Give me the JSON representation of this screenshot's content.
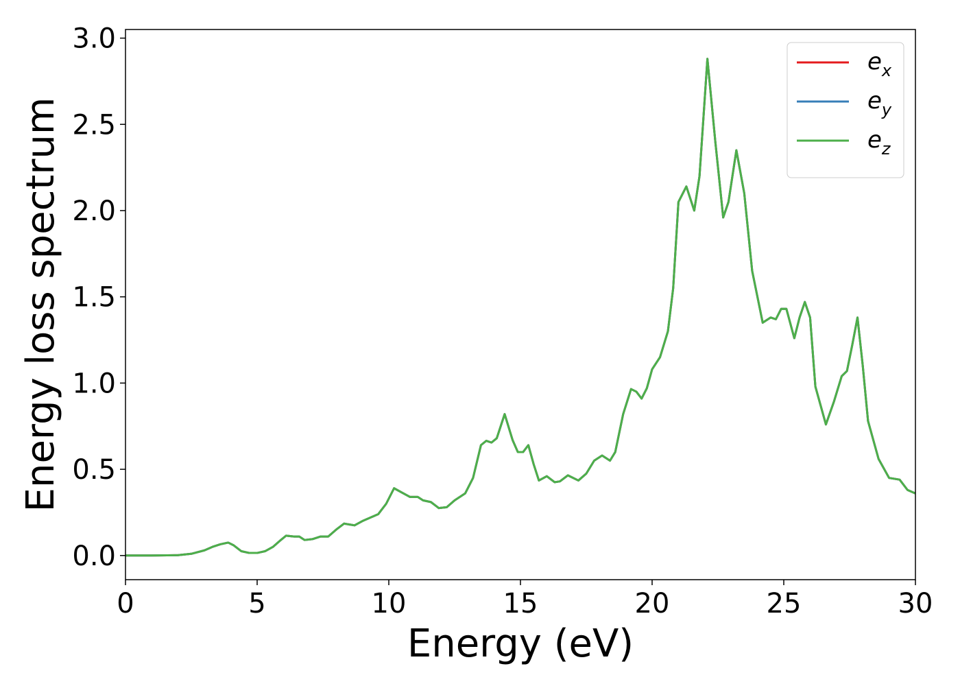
{
  "chart_data": {
    "type": "line",
    "xlabel": "Energy (eV)",
    "ylabel": "Energy loss spectrum",
    "x": [
      0,
      1,
      2,
      2.5,
      3,
      3.3,
      3.6,
      3.9,
      4.1,
      4.4,
      4.7,
      5,
      5.3,
      5.6,
      5.9,
      6.1,
      6.4,
      6.6,
      6.8,
      7.1,
      7.4,
      7.7,
      8,
      8.3,
      8.7,
      9,
      9.3,
      9.6,
      9.9,
      10.2,
      10.5,
      10.8,
      11.1,
      11.3,
      11.6,
      11.9,
      12.2,
      12.5,
      12.9,
      13.2,
      13.5,
      13.7,
      13.9,
      14.1,
      14.4,
      14.7,
      14.9,
      15.1,
      15.3,
      15.5,
      15.7,
      16,
      16.3,
      16.5,
      16.8,
      17.2,
      17.5,
      17.8,
      18.1,
      18.4,
      18.6,
      18.9,
      19.2,
      19.4,
      19.6,
      19.8,
      20,
      20.3,
      20.6,
      20.8,
      21,
      21.3,
      21.6,
      21.8,
      22.1,
      22.4,
      22.7,
      22.9,
      23.2,
      23.5,
      23.8,
      24.2,
      24.5,
      24.7,
      24.9,
      25.1,
      25.4,
      25.6,
      25.8,
      26,
      26.2,
      26.6,
      26.9,
      27.2,
      27.4,
      27.6,
      27.8,
      28,
      28.2,
      28.6,
      29,
      29.4,
      29.7,
      30
    ],
    "series": [
      {
        "name": "e_x",
        "color": "#e41a1c",
        "values": [
          0,
          0,
          0.002,
          0.01,
          0.03,
          0.05,
          0.065,
          0.075,
          0.06,
          0.025,
          0.015,
          0.015,
          0.025,
          0.05,
          0.09,
          0.115,
          0.11,
          0.11,
          0.09,
          0.095,
          0.11,
          0.11,
          0.15,
          0.185,
          0.175,
          0.2,
          0.22,
          0.24,
          0.3,
          0.39,
          0.365,
          0.34,
          0.34,
          0.32,
          0.31,
          0.275,
          0.28,
          0.32,
          0.36,
          0.45,
          0.64,
          0.665,
          0.655,
          0.68,
          0.82,
          0.67,
          0.6,
          0.6,
          0.64,
          0.53,
          0.435,
          0.46,
          0.425,
          0.43,
          0.465,
          0.435,
          0.475,
          0.55,
          0.58,
          0.55,
          0.6,
          0.82,
          0.965,
          0.95,
          0.91,
          0.97,
          1.08,
          1.15,
          1.3,
          1.55,
          2.05,
          2.14,
          2.0,
          2.2,
          2.88,
          2.4,
          1.96,
          2.05,
          2.35,
          2.1,
          1.65,
          1.35,
          1.38,
          1.37,
          1.43,
          1.43,
          1.26,
          1.38,
          1.47,
          1.38,
          0.98,
          0.76,
          0.89,
          1.04,
          1.07,
          1.22,
          1.38,
          1.1,
          0.78,
          0.56,
          0.45,
          0.44,
          0.38,
          0.36
        ]
      },
      {
        "name": "e_y",
        "color": "#377eb8",
        "values": [
          0,
          0,
          0.002,
          0.01,
          0.03,
          0.05,
          0.065,
          0.075,
          0.06,
          0.025,
          0.015,
          0.015,
          0.025,
          0.05,
          0.09,
          0.115,
          0.11,
          0.11,
          0.09,
          0.095,
          0.11,
          0.11,
          0.15,
          0.185,
          0.175,
          0.2,
          0.22,
          0.24,
          0.3,
          0.39,
          0.365,
          0.34,
          0.34,
          0.32,
          0.31,
          0.275,
          0.28,
          0.32,
          0.36,
          0.45,
          0.64,
          0.665,
          0.655,
          0.68,
          0.82,
          0.67,
          0.6,
          0.6,
          0.64,
          0.53,
          0.435,
          0.46,
          0.425,
          0.43,
          0.465,
          0.435,
          0.475,
          0.55,
          0.58,
          0.55,
          0.6,
          0.82,
          0.965,
          0.95,
          0.91,
          0.97,
          1.08,
          1.15,
          1.3,
          1.55,
          2.05,
          2.14,
          2.0,
          2.2,
          2.88,
          2.4,
          1.96,
          2.05,
          2.35,
          2.1,
          1.65,
          1.35,
          1.38,
          1.37,
          1.43,
          1.43,
          1.26,
          1.38,
          1.47,
          1.38,
          0.98,
          0.76,
          0.89,
          1.04,
          1.07,
          1.22,
          1.38,
          1.1,
          0.78,
          0.56,
          0.45,
          0.44,
          0.38,
          0.36
        ]
      },
      {
        "name": "e_z",
        "color": "#4daf4a",
        "values": [
          0,
          0,
          0.002,
          0.01,
          0.03,
          0.05,
          0.065,
          0.075,
          0.06,
          0.025,
          0.015,
          0.015,
          0.025,
          0.05,
          0.09,
          0.115,
          0.11,
          0.11,
          0.09,
          0.095,
          0.11,
          0.11,
          0.15,
          0.185,
          0.175,
          0.2,
          0.22,
          0.24,
          0.3,
          0.39,
          0.365,
          0.34,
          0.34,
          0.32,
          0.31,
          0.275,
          0.28,
          0.32,
          0.36,
          0.45,
          0.64,
          0.665,
          0.655,
          0.68,
          0.82,
          0.67,
          0.6,
          0.6,
          0.64,
          0.53,
          0.435,
          0.46,
          0.425,
          0.43,
          0.465,
          0.435,
          0.475,
          0.55,
          0.58,
          0.55,
          0.6,
          0.82,
          0.965,
          0.95,
          0.91,
          0.97,
          1.08,
          1.15,
          1.3,
          1.55,
          2.05,
          2.14,
          2.0,
          2.2,
          2.88,
          2.4,
          1.96,
          2.05,
          2.35,
          2.1,
          1.65,
          1.35,
          1.38,
          1.37,
          1.43,
          1.43,
          1.26,
          1.38,
          1.47,
          1.38,
          0.98,
          0.76,
          0.89,
          1.04,
          1.07,
          1.22,
          1.38,
          1.1,
          0.78,
          0.56,
          0.45,
          0.44,
          0.38,
          0.36
        ]
      }
    ],
    "xlim": [
      0,
      30
    ],
    "xticks": [
      0,
      5,
      10,
      15,
      20,
      25,
      30
    ],
    "ylim": [
      -0.14,
      3.05
    ],
    "yticks": [
      {
        "value": 0,
        "label": "0.0"
      },
      {
        "value": 0.5,
        "label": "0.5"
      },
      {
        "value": 1,
        "label": "1.0"
      },
      {
        "value": 1.5,
        "label": "1.5"
      },
      {
        "value": 2,
        "label": "2.0"
      },
      {
        "value": 2.5,
        "label": "2.5"
      },
      {
        "value": 3,
        "label": "3.0"
      }
    ],
    "grid": false,
    "legend": "upper right"
  }
}
